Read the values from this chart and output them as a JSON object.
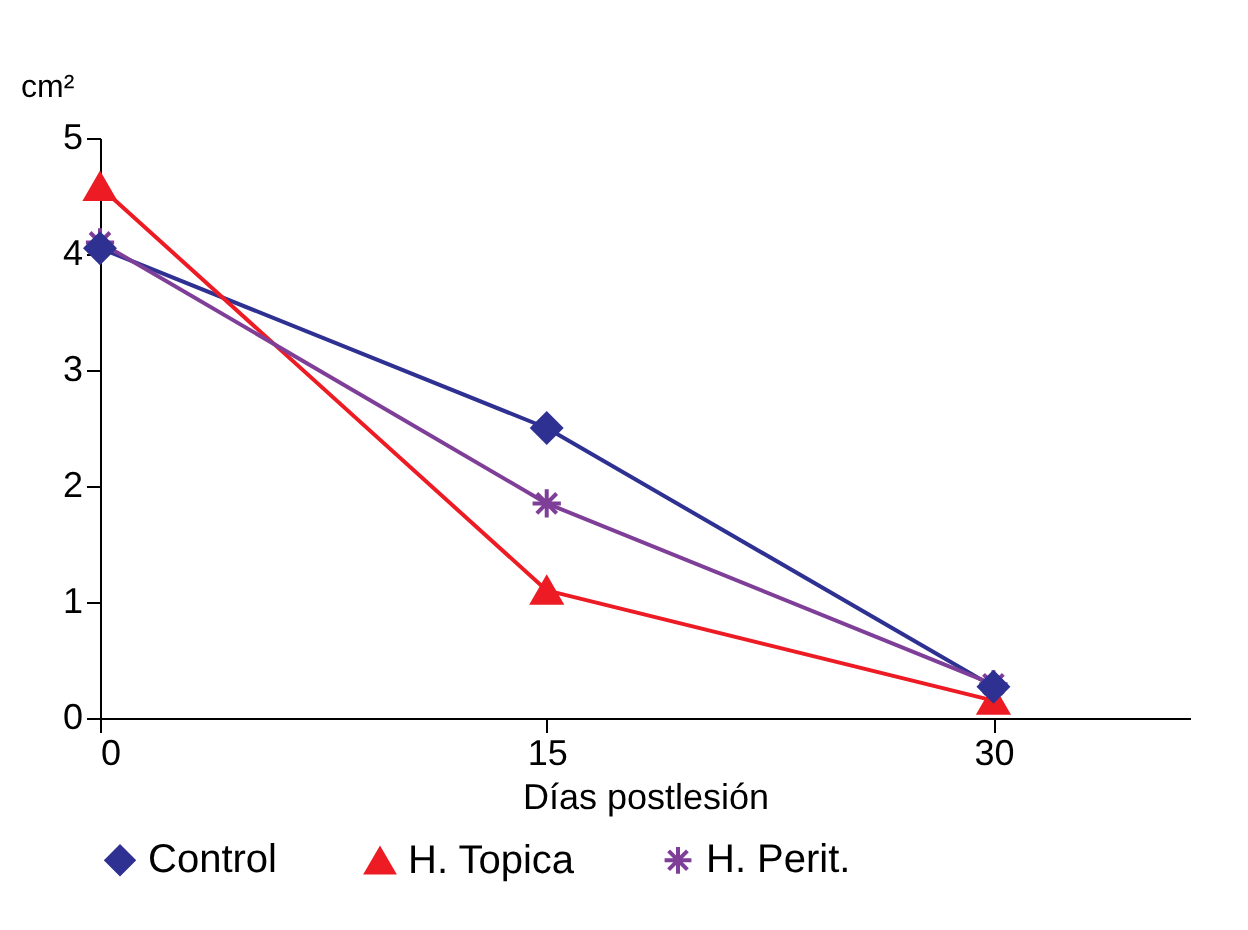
{
  "chart_data": {
    "type": "line",
    "xlabel": "Días postlesión",
    "ylabel": "cm²",
    "x": [
      0,
      15,
      30
    ],
    "xlim": [
      0,
      36.6
    ],
    "xticks": [
      0,
      15,
      30
    ],
    "ylim": [
      0,
      5
    ],
    "yticks": [
      0,
      1,
      2,
      3,
      4,
      5
    ],
    "grid": false,
    "legend": "bottom",
    "line_style": "solid",
    "series": [
      {
        "name": "Control",
        "color": "#2e3192",
        "marker": "diamond",
        "values": [
          4.05,
          2.5,
          0.27
        ]
      },
      {
        "name": "H. Topica",
        "color": "#ed1c24",
        "marker": "triangle",
        "values": [
          4.58,
          1.1,
          0.15
        ]
      },
      {
        "name": "H. Perit.",
        "color": "#7f3f98",
        "marker": "cross",
        "values": [
          4.1,
          1.85,
          0.29
        ]
      }
    ]
  }
}
